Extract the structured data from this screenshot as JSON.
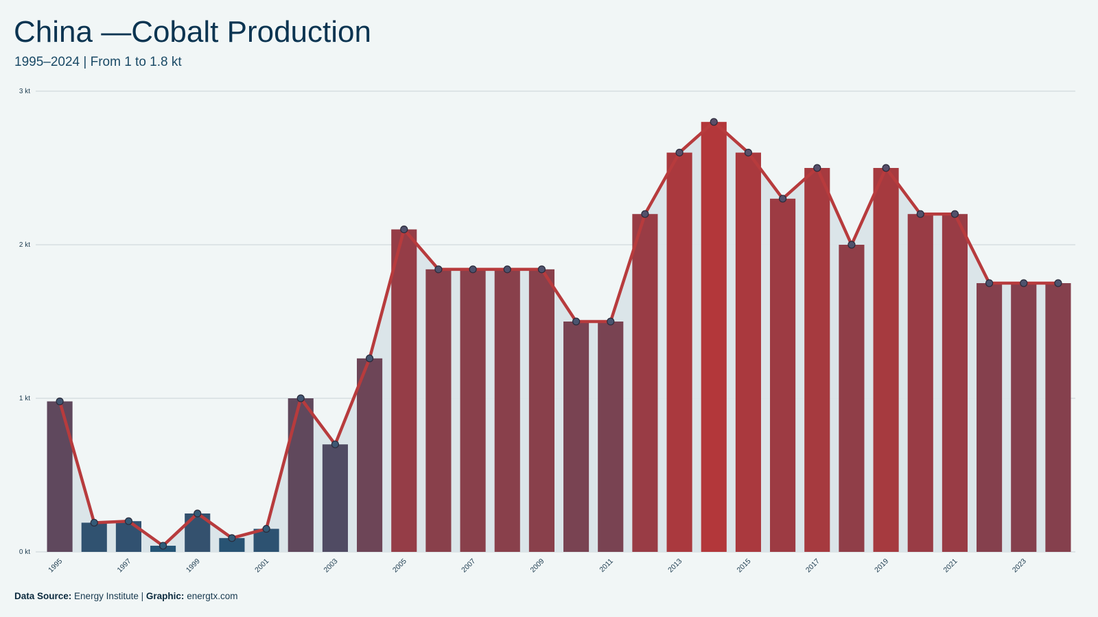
{
  "header": {
    "title": "China —Cobalt Production",
    "subtitle": "1995–2024 | From 1 to 1.8 kt"
  },
  "footer": {
    "source_label": "Data Source:",
    "source_value": "Energy Institute",
    "separator": "|",
    "graphic_label": "Graphic:",
    "graphic_value": "energtx.com"
  },
  "colors": {
    "line": "#b73b3d",
    "marker_fill": "#5a4e68",
    "marker_stroke": "#2a2a3a",
    "area": "#d9e4e8",
    "grid": "#c9d3d7",
    "bar_low": "#1f5577",
    "bar_high": "#b3373a"
  },
  "chart_data": {
    "type": "bar",
    "title": "China —Cobalt Production",
    "subtitle": "1995–2024 | From 1 to 1.8 kt",
    "xlabel": "",
    "ylabel": "",
    "unit": "kt",
    "ylim": [
      0,
      3
    ],
    "yticks": [
      0,
      1,
      2,
      3
    ],
    "ytick_labels": [
      "0 kt",
      "1 kt",
      "2 kt",
      "3 kt"
    ],
    "grid": true,
    "categories": [
      "1995",
      "1996",
      "1997",
      "1998",
      "1999",
      "2000",
      "2001",
      "2002",
      "2003",
      "2004",
      "2005",
      "2006",
      "2007",
      "2008",
      "2009",
      "2010",
      "2011",
      "2012",
      "2013",
      "2014",
      "2015",
      "2016",
      "2017",
      "2018",
      "2019",
      "2020",
      "2021",
      "2022",
      "2023",
      "2024"
    ],
    "xtick_labels": [
      "1995",
      "1997",
      "1999",
      "2001",
      "2003",
      "2005",
      "2007",
      "2009",
      "2011",
      "2013",
      "2015",
      "2017",
      "2019",
      "2021",
      "2023"
    ],
    "values": [
      0.98,
      0.19,
      0.2,
      0.04,
      0.25,
      0.09,
      0.15,
      1.0,
      0.7,
      1.26,
      2.1,
      1.84,
      1.84,
      1.84,
      1.84,
      1.5,
      1.5,
      2.2,
      2.6,
      2.8,
      2.6,
      2.3,
      2.5,
      2.0,
      2.5,
      2.2,
      2.2,
      1.75,
      1.75,
      1.75
    ],
    "overlay": "line with markers over bars"
  }
}
